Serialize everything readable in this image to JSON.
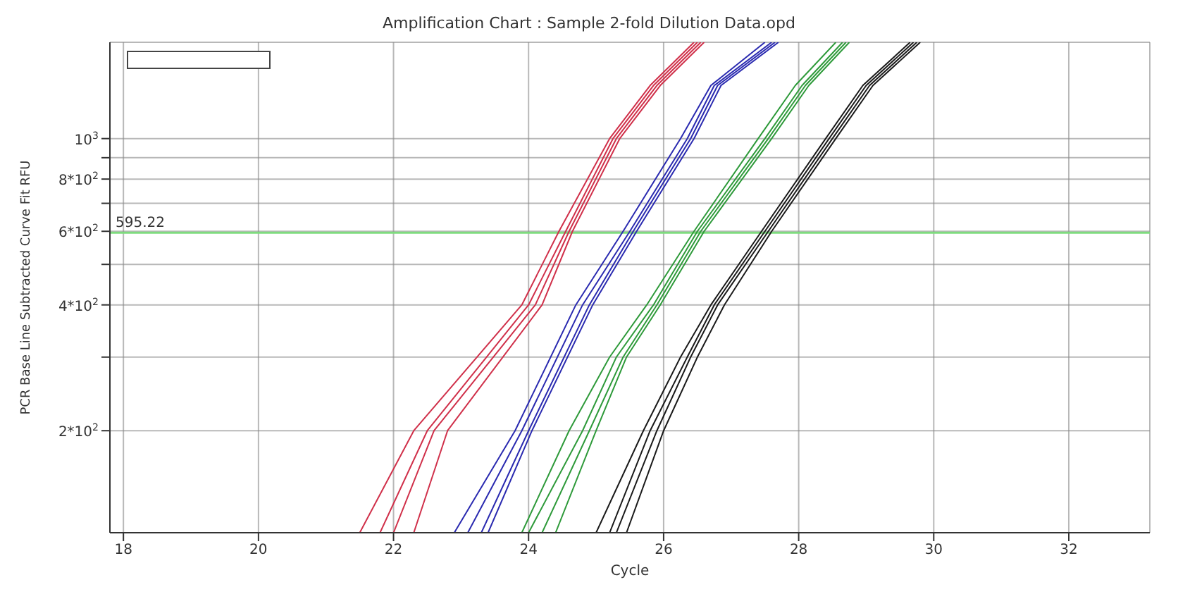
{
  "chart_data": {
    "type": "line",
    "title": "Amplification Chart : Sample 2-fold Dilution Data.opd",
    "xlabel": "Cycle",
    "ylabel": "PCR Base Line Subtracted Curve Fit RFU",
    "xlim": [
      17.8,
      33.2
    ],
    "xticks": [
      18,
      20,
      22,
      24,
      26,
      28,
      30,
      32
    ],
    "ylim": [
      114,
      1700
    ],
    "log": "y",
    "yticks": [
      {
        "value": 200,
        "label": "2*10$^{2}$"
      },
      {
        "value": 300,
        "label": null
      },
      {
        "value": 400,
        "label": "4*10$^{2}$"
      },
      {
        "value": 500,
        "label": null
      },
      {
        "value": 600,
        "label": "6*10$^{2}$"
      },
      {
        "value": 700,
        "label": null
      },
      {
        "value": 800,
        "label": "8*10$^{2}$"
      },
      {
        "value": 900,
        "label": null
      },
      {
        "value": 1000,
        "label": "10$^{3}$"
      }
    ],
    "grid": true,
    "legend": "top left",
    "marker": "none",
    "line_style": "solid",
    "ref_lines": [
      {
        "axis": "y",
        "value": 595.22,
        "label": "595.22",
        "color": "#7fdc7f"
      }
    ],
    "series": [
      {
        "color": "#d0304a",
        "x": [
          21.5,
          22.3,
          23.9,
          24.45,
          25.2,
          25.8,
          26.45
        ],
        "values": [
          114,
          200,
          400,
          600,
          1000,
          1340,
          1700
        ]
      },
      {
        "color": "#d0304a",
        "x": [
          21.8,
          22.5,
          24.0,
          24.55,
          25.25,
          25.85,
          26.5
        ],
        "values": [
          114,
          200,
          400,
          600,
          1000,
          1340,
          1700
        ]
      },
      {
        "color": "#d0304a",
        "x": [
          22.0,
          22.6,
          24.1,
          24.6,
          25.3,
          25.9,
          26.55
        ],
        "values": [
          114,
          200,
          400,
          600,
          1000,
          1340,
          1700
        ]
      },
      {
        "color": "#d0304a",
        "x": [
          22.3,
          22.8,
          24.2,
          24.65,
          25.35,
          25.95,
          26.6
        ],
        "values": [
          114,
          200,
          400,
          600,
          1000,
          1340,
          1700
        ]
      },
      {
        "color": "#2a2ab0",
        "x": [
          22.9,
          23.8,
          24.7,
          25.4,
          26.25,
          26.7,
          27.5
        ],
        "values": [
          114,
          200,
          400,
          600,
          1000,
          1340,
          1700
        ]
      },
      {
        "color": "#2a2ab0",
        "x": [
          23.1,
          23.9,
          24.8,
          25.5,
          26.35,
          26.75,
          27.6
        ],
        "values": [
          114,
          200,
          400,
          600,
          1000,
          1340,
          1700
        ]
      },
      {
        "color": "#2a2ab0",
        "x": [
          23.3,
          24.0,
          24.9,
          25.55,
          26.4,
          26.8,
          27.65
        ],
        "values": [
          114,
          200,
          400,
          600,
          1000,
          1340,
          1700
        ]
      },
      {
        "color": "#2a2ab0",
        "x": [
          23.4,
          24.05,
          24.95,
          25.6,
          26.45,
          26.85,
          27.7
        ],
        "values": [
          114,
          200,
          400,
          600,
          1000,
          1340,
          1700
        ]
      },
      {
        "color": "#2e9a3a",
        "x": [
          23.9,
          24.6,
          25.2,
          25.75,
          26.45,
          27.4,
          27.95,
          28.55
        ],
        "values": [
          114,
          200,
          300,
          400,
          600,
          1000,
          1340,
          1700
        ]
      },
      {
        "color": "#2e9a3a",
        "x": [
          24.0,
          24.8,
          25.3,
          25.85,
          26.5,
          27.5,
          28.05,
          28.65
        ],
        "values": [
          114,
          200,
          300,
          400,
          600,
          1000,
          1340,
          1700
        ]
      },
      {
        "color": "#2e9a3a",
        "x": [
          24.2,
          24.9,
          25.4,
          25.9,
          26.55,
          27.55,
          28.1,
          28.7
        ],
        "values": [
          114,
          200,
          300,
          400,
          600,
          1000,
          1340,
          1700
        ]
      },
      {
        "color": "#2e9a3a",
        "x": [
          24.4,
          25.0,
          25.45,
          25.95,
          26.6,
          27.6,
          28.15,
          28.75
        ],
        "values": [
          114,
          200,
          300,
          400,
          600,
          1000,
          1340,
          1700
        ]
      },
      {
        "color": "#1a1a1a",
        "x": [
          25.0,
          25.7,
          26.25,
          26.7,
          27.45,
          28.4,
          28.95,
          29.65
        ],
        "values": [
          114,
          200,
          300,
          400,
          600,
          1000,
          1340,
          1700
        ]
      },
      {
        "color": "#1a1a1a",
        "x": [
          25.2,
          25.8,
          26.35,
          26.75,
          27.5,
          28.45,
          29.0,
          29.7
        ],
        "values": [
          114,
          200,
          300,
          400,
          600,
          1000,
          1340,
          1700
        ]
      },
      {
        "color": "#1a1a1a",
        "x": [
          25.3,
          25.9,
          26.4,
          26.8,
          27.55,
          28.5,
          29.05,
          29.75
        ],
        "values": [
          114,
          200,
          300,
          400,
          600,
          1000,
          1340,
          1700
        ]
      },
      {
        "color": "#1a1a1a",
        "x": [
          25.45,
          26.0,
          26.5,
          26.9,
          27.6,
          28.55,
          29.1,
          29.8
        ],
        "values": [
          114,
          200,
          300,
          400,
          600,
          1000,
          1340,
          1700
        ]
      }
    ]
  }
}
